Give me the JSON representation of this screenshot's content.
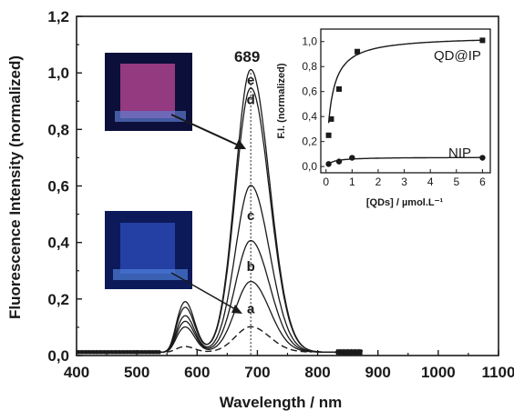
{
  "chart_data": [
    {
      "type": "line",
      "title": "",
      "xlabel": "Wavelength / nm",
      "ylabel": "Fluorescence Intensity (normalized)",
      "xlim": [
        400,
        1100
      ],
      "ylim": [
        0,
        1.2
      ],
      "xticks": [
        "400",
        "500",
        "600",
        "700",
        "800",
        "900",
        "1000",
        "1100"
      ],
      "yticks": [
        "0,0",
        "0,2",
        "0,4",
        "0,6",
        "0,8",
        "1,0",
        "1,2"
      ],
      "peak_label": "689",
      "peak_x": 689,
      "curves": [
        {
          "label": "e",
          "peak": 1.0,
          "shoulder": 0.16
        },
        {
          "label": "d",
          "peak": 0.935,
          "shoulder": 0.18
        },
        {
          "label": "c",
          "peak": 0.59,
          "shoulder": 0.13
        },
        {
          "label": "b",
          "peak": 0.395,
          "shoulder": 0.11
        },
        {
          "label": "a",
          "peak": 0.25,
          "shoulder": 0.09
        },
        {
          "label": "",
          "peak": 0.09,
          "shoulder": 0.02,
          "dashed": true
        }
      ],
      "curve_label_x": [
        689,
        689,
        689,
        689,
        689
      ],
      "curve_label_y": [
        0.975,
        0.905,
        0.495,
        0.315,
        0.165
      ]
    },
    {
      "type": "scatter",
      "xlabel": "[QDs] / µmol.L⁻¹",
      "ylabel": "F.I. (normalized)",
      "xlim": [
        -0.2,
        6.3
      ],
      "ylim": [
        -0.05,
        1.1
      ],
      "xticks": [
        "0",
        "1",
        "2",
        "3",
        "4",
        "5",
        "6"
      ],
      "yticks": [
        "0,0",
        "0,2",
        "0,4",
        "0,6",
        "0,8",
        "1,0"
      ],
      "series": [
        {
          "name": "QD@IP",
          "marker": "square",
          "x": [
            0.1,
            0.2,
            0.5,
            1.2,
            6.0
          ],
          "y": [
            0.25,
            0.38,
            0.62,
            0.92,
            1.01
          ]
        },
        {
          "name": "NIP",
          "marker": "circle",
          "x": [
            0.1,
            0.5,
            1.0,
            6.0
          ],
          "y": [
            0.02,
            0.04,
            0.07,
            0.07
          ]
        }
      ]
    }
  ]
}
